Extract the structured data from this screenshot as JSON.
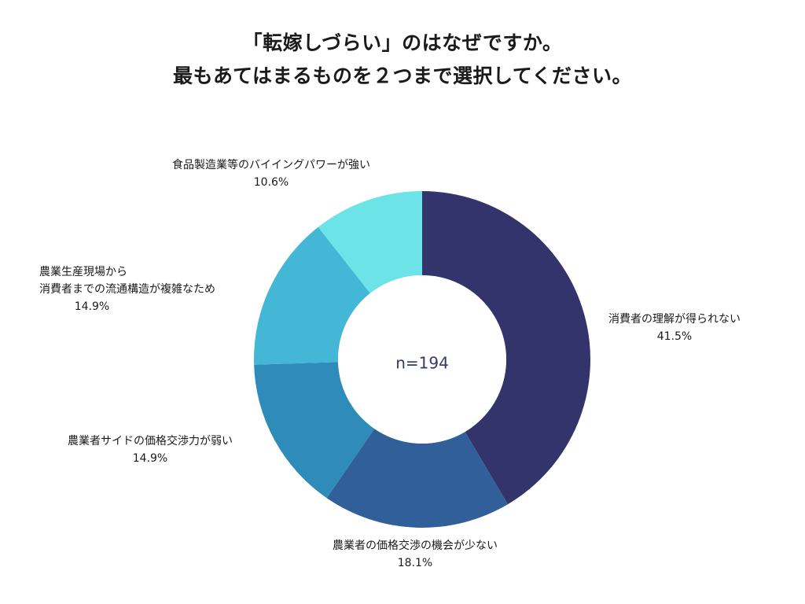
{
  "title": {
    "line1": "「転嫁しづらい」のはなぜですか。",
    "line2": "最もあてはまるものを２つまで選択してください。"
  },
  "chart_data": {
    "type": "pie",
    "donut": true,
    "center_label": "n=194",
    "start": "12 o'clock",
    "direction": "clockwise",
    "slices": [
      {
        "label_lines": [
          "消費者の理解が得られない"
        ],
        "value": 41.5,
        "value_label": "41.5%",
        "color": "#33346b"
      },
      {
        "label_lines": [
          "農業者の価格交渉の機会が少ない"
        ],
        "value": 18.1,
        "value_label": "18.1%",
        "color": "#315f9a"
      },
      {
        "label_lines": [
          "農業者サイドの価格交渉力が弱い"
        ],
        "value": 14.9,
        "value_label": "14.9%",
        "color": "#2e8bba"
      },
      {
        "label_lines": [
          "農業生産現場から",
          "消費者までの流通構造が複雑なため"
        ],
        "value": 14.9,
        "value_label": "14.9%",
        "color": "#44b6d6"
      },
      {
        "label_lines": [
          "食品製造業等のバイイングパワーが強い"
        ],
        "value": 10.6,
        "value_label": "10.6%",
        "color": "#6be3e7"
      }
    ]
  }
}
